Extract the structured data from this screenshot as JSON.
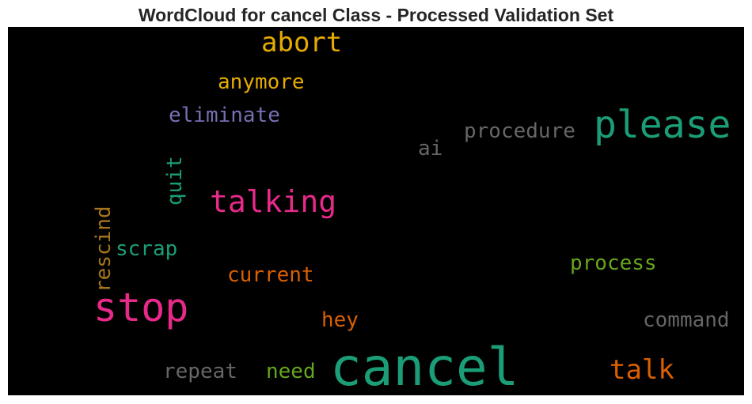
{
  "title": "WordCloud for cancel Class - Processed Validation Set",
  "colors": {
    "teal": "#1b9e77",
    "pink": "#e7298a",
    "orange": "#d95f02",
    "gold": "#e6ab02",
    "purple": "#7570b3",
    "green": "#66a61e",
    "gray": "#666666",
    "brown": "#a6761d"
  },
  "words": [
    {
      "text": "cancel",
      "color": "teal",
      "vertical": false
    },
    {
      "text": "please",
      "color": "teal",
      "vertical": false
    },
    {
      "text": "stop",
      "color": "pink",
      "vertical": false
    },
    {
      "text": "talking",
      "color": "pink",
      "vertical": false
    },
    {
      "text": "abort",
      "color": "gold",
      "vertical": false
    },
    {
      "text": "talk",
      "color": "orange",
      "vertical": false
    },
    {
      "text": "anymore",
      "color": "gold",
      "vertical": false
    },
    {
      "text": "eliminate",
      "color": "purple",
      "vertical": false
    },
    {
      "text": "procedure",
      "color": "gray",
      "vertical": false
    },
    {
      "text": "ai",
      "color": "gray",
      "vertical": false
    },
    {
      "text": "quit",
      "color": "teal",
      "vertical": true
    },
    {
      "text": "rescind",
      "color": "brown",
      "vertical": true
    },
    {
      "text": "scrap",
      "color": "teal",
      "vertical": false
    },
    {
      "text": "current",
      "color": "orange",
      "vertical": false
    },
    {
      "text": "process",
      "color": "green",
      "vertical": false
    },
    {
      "text": "hey",
      "color": "orange",
      "vertical": false
    },
    {
      "text": "command",
      "color": "gray",
      "vertical": false
    },
    {
      "text": "repeat",
      "color": "gray",
      "vertical": false
    },
    {
      "text": "need",
      "color": "green",
      "vertical": false
    }
  ]
}
